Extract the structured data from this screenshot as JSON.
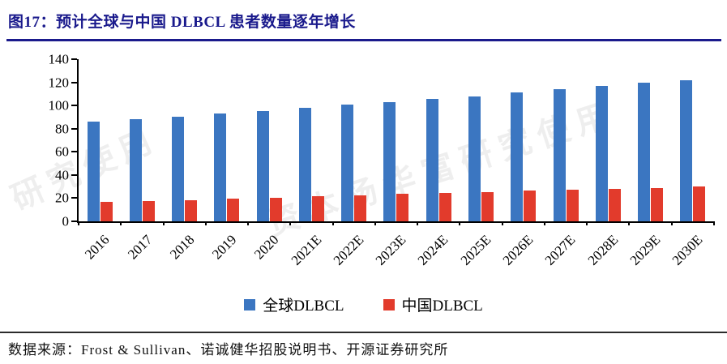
{
  "header": {
    "title": "图17：预计全球与中国 DLBCL 患者数量逐年增长"
  },
  "chart_data": {
    "type": "bar",
    "title": "预计全球与中国DLBCL患者数量逐年增长",
    "categories": [
      "2016",
      "2017",
      "2018",
      "2019",
      "2020",
      "2021E",
      "2022E",
      "2023E",
      "2024E",
      "2025E",
      "2026E",
      "2027E",
      "2028E",
      "2029E",
      "2030E"
    ],
    "series": [
      {
        "name": "全球DLBCL",
        "color": "#3b76c1",
        "values": [
          86,
          88,
          90,
          93,
          95,
          98,
          101,
          103,
          106,
          108,
          111,
          114,
          117,
          120,
          122
        ]
      },
      {
        "name": "中国DLBCL",
        "color": "#e23b2c",
        "values": [
          17,
          17.5,
          18.5,
          19.5,
          20.5,
          21.5,
          22.5,
          23.5,
          24.5,
          25.5,
          26.5,
          27.5,
          28,
          29,
          30
        ]
      }
    ],
    "xlabel": "",
    "ylabel": "",
    "ylim": [
      0,
      140
    ],
    "yticks": [
      0,
      20,
      40,
      60,
      80,
      100,
      120,
      140
    ],
    "grid": false,
    "legend_position": "bottom"
  },
  "watermark": {
    "left_text": "研究使用",
    "right_text": "资本杨华富研究使用"
  },
  "footer": {
    "source": "数据来源：Frost & Sullivan、诺诚健华招股说明书、开源证券研究所"
  },
  "colors": {
    "title": "#1a1a8c",
    "title_rule": "#1a1a8c",
    "axis": "#000000",
    "global_bar": "#3b76c1",
    "china_bar": "#e23b2c"
  }
}
